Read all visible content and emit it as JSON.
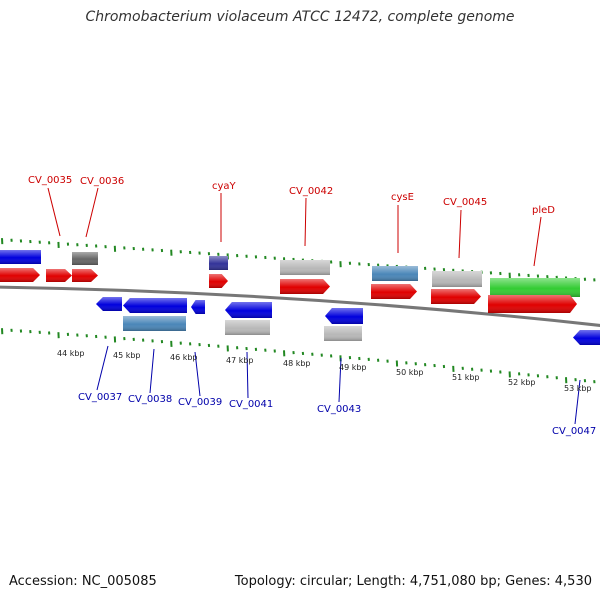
{
  "title": "Chromobacterium violaceum ATCC 12472, complete genome",
  "footer": {
    "accession": "Accession: NC_005085",
    "summary": "Topology: circular; Length: 4,751,080 bp; Genes: 4,530"
  },
  "colors": {
    "cds_red": "#e00000",
    "cds_blue": "#0000dd",
    "label_red": "#cc0000",
    "label_blue": "#0000aa",
    "backbone": "#777777",
    "tick_green": "#228822",
    "gene_green": "#33cc33",
    "gene_steelblue": "#4a86b8",
    "gene_gray": "#b8b8b8",
    "gene_darkgray": "#666666",
    "gene_purple": "#333399"
  },
  "scale_labels": [
    "44 kbp",
    "45 kbp",
    "46 kbp",
    "47 kbp",
    "48 kbp",
    "49 kbp",
    "50 kbp",
    "51 kbp",
    "52 kbp",
    "53 kbp"
  ],
  "top_labels": [
    "CV_0035",
    "CV_0036",
    "cyaY",
    "CV_0042",
    "cysE",
    "CV_0045",
    "pleD"
  ],
  "bottom_labels": [
    "CV_0037",
    "CV_0038",
    "CV_0039",
    "CV_0041",
    "CV_0043",
    "CV_0047"
  ]
}
